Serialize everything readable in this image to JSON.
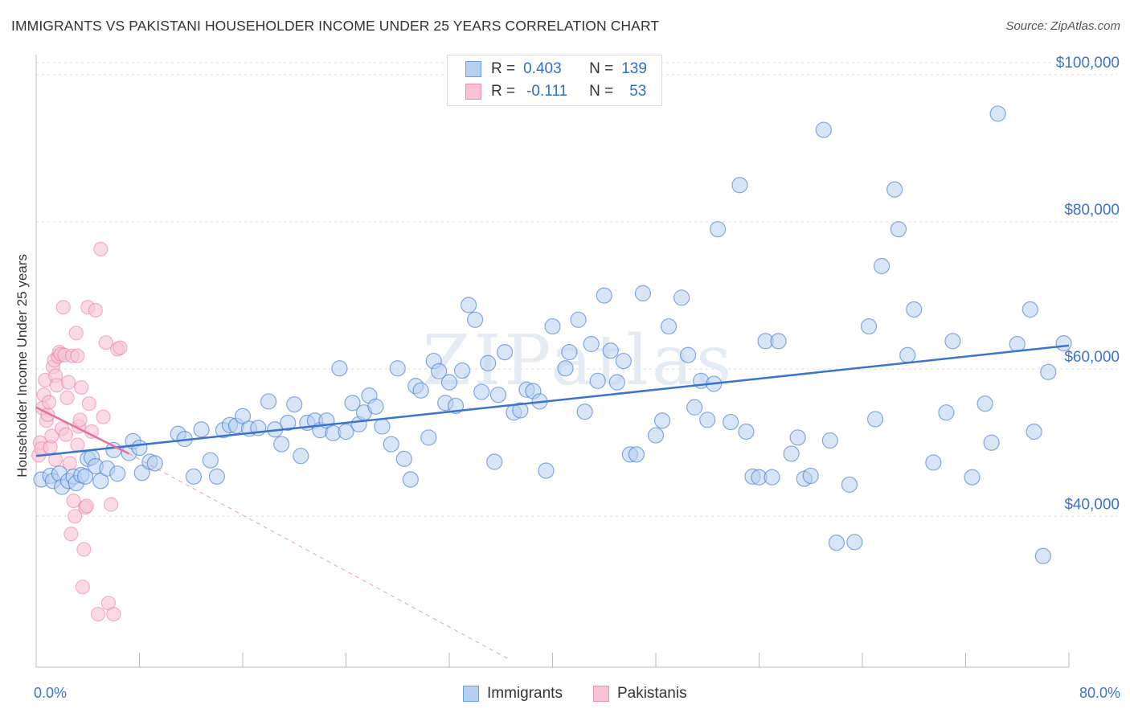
{
  "title": "IMMIGRANTS VS PAKISTANI HOUSEHOLDER INCOME UNDER 25 YEARS CORRELATION CHART",
  "source": "Source: ZipAtlas.com",
  "colors": {
    "blue": "#3a74cf",
    "blue_fill": "#b8d0f0",
    "pink": "#e8709a",
    "pink_fill": "#f7c3d3"
  },
  "legend": {
    "rows": [
      {
        "r_label": "R =",
        "r_value": "0.403",
        "n_label": "N =",
        "n_value": "139"
      },
      {
        "r_label": "R =",
        "r_value": "-0.111",
        "n_label": "N =",
        "n_value": "53"
      }
    ]
  },
  "bottom_legend": {
    "immigrants": "Immigrants",
    "pakistanis": "Pakistanis"
  },
  "chart_data": {
    "type": "scatter",
    "title": "IMMIGRANTS VS PAKISTANI HOUSEHOLDER INCOME UNDER 25 YEARS CORRELATION CHART",
    "xlabel": "",
    "ylabel": "Householder Income Under 25 years",
    "xlim": [
      0,
      80
    ],
    "ylim": [
      19500,
      102500
    ],
    "x_tick_labels": [
      "0.0%",
      "80.0%"
    ],
    "y_ticks": [
      {
        "value": 40000,
        "label": "$40,000"
      },
      {
        "value": 60000,
        "label": "$60,000"
      },
      {
        "value": 80000,
        "label": "$80,000"
      },
      {
        "value": 100000,
        "label": "$100,000"
      }
    ],
    "watermark": "ZIPatlas",
    "series": [
      {
        "name": "Immigrants",
        "r": 0.403,
        "n": 139,
        "trend": {
          "x0": 0,
          "y0": 48200,
          "x1": 80,
          "y1": 63200
        },
        "points": [
          [
            0.4,
            45000
          ],
          [
            1.1,
            45500
          ],
          [
            1.3,
            44800
          ],
          [
            1.8,
            45800
          ],
          [
            2.0,
            44000
          ],
          [
            2.5,
            44800
          ],
          [
            2.9,
            45400
          ],
          [
            3.1,
            44500
          ],
          [
            3.5,
            45600
          ],
          [
            3.8,
            45400
          ],
          [
            4.0,
            47800
          ],
          [
            4.3,
            48000
          ],
          [
            4.6,
            46800
          ],
          [
            5.0,
            44800
          ],
          [
            5.5,
            46500
          ],
          [
            6.0,
            49000
          ],
          [
            6.3,
            45800
          ],
          [
            7.2,
            48600
          ],
          [
            7.5,
            50200
          ],
          [
            8.0,
            49300
          ],
          [
            8.2,
            45900
          ],
          [
            8.8,
            47400
          ],
          [
            9.2,
            47200
          ],
          [
            11.0,
            51200
          ],
          [
            11.5,
            50500
          ],
          [
            12.2,
            45400
          ],
          [
            12.8,
            51800
          ],
          [
            13.5,
            47600
          ],
          [
            14.0,
            45400
          ],
          [
            14.5,
            51700
          ],
          [
            15.0,
            52400
          ],
          [
            15.5,
            52300
          ],
          [
            16.0,
            53600
          ],
          [
            16.5,
            51900
          ],
          [
            17.2,
            52000
          ],
          [
            18.0,
            55600
          ],
          [
            18.5,
            51800
          ],
          [
            19.0,
            49800
          ],
          [
            19.5,
            52700
          ],
          [
            20.0,
            55200
          ],
          [
            20.5,
            48200
          ],
          [
            21.0,
            52700
          ],
          [
            21.6,
            53000
          ],
          [
            22.0,
            51700
          ],
          [
            22.5,
            53000
          ],
          [
            23.0,
            51300
          ],
          [
            23.5,
            60100
          ],
          [
            24.0,
            51500
          ],
          [
            24.5,
            55400
          ],
          [
            25.0,
            52500
          ],
          [
            25.4,
            54100
          ],
          [
            25.8,
            56400
          ],
          [
            26.3,
            54900
          ],
          [
            26.8,
            52200
          ],
          [
            27.5,
            49800
          ],
          [
            28.0,
            60100
          ],
          [
            28.5,
            47800
          ],
          [
            29.0,
            45000
          ],
          [
            29.4,
            57700
          ],
          [
            29.8,
            57100
          ],
          [
            30.4,
            50700
          ],
          [
            30.8,
            61100
          ],
          [
            31.2,
            59700
          ],
          [
            31.7,
            55400
          ],
          [
            32.0,
            58200
          ],
          [
            32.5,
            55000
          ],
          [
            33.0,
            59800
          ],
          [
            33.5,
            68700
          ],
          [
            34.0,
            66700
          ],
          [
            34.5,
            56900
          ],
          [
            35.0,
            60800
          ],
          [
            35.5,
            47400
          ],
          [
            35.8,
            56500
          ],
          [
            36.3,
            62300
          ],
          [
            37.0,
            54100
          ],
          [
            37.5,
            54400
          ],
          [
            38.0,
            57200
          ],
          [
            38.5,
            57000
          ],
          [
            39.0,
            55600
          ],
          [
            39.5,
            46200
          ],
          [
            40.0,
            65800
          ],
          [
            41.0,
            60100
          ],
          [
            41.3,
            62300
          ],
          [
            42.0,
            66700
          ],
          [
            42.5,
            54200
          ],
          [
            43.0,
            63400
          ],
          [
            43.5,
            58400
          ],
          [
            44.0,
            70000
          ],
          [
            44.5,
            62500
          ],
          [
            45.0,
            58200
          ],
          [
            45.5,
            61100
          ],
          [
            46.0,
            48400
          ],
          [
            46.5,
            48400
          ],
          [
            47.0,
            70300
          ],
          [
            48.0,
            51000
          ],
          [
            48.5,
            53000
          ],
          [
            49.0,
            65800
          ],
          [
            50.0,
            69700
          ],
          [
            50.5,
            61900
          ],
          [
            51.0,
            54800
          ],
          [
            51.5,
            58400
          ],
          [
            52.0,
            53100
          ],
          [
            52.5,
            58000
          ],
          [
            52.8,
            79000
          ],
          [
            53.8,
            52800
          ],
          [
            54.5,
            85000
          ],
          [
            55.0,
            51500
          ],
          [
            55.5,
            45400
          ],
          [
            56.0,
            45300
          ],
          [
            56.5,
            63800
          ],
          [
            57.0,
            45300
          ],
          [
            57.5,
            63800
          ],
          [
            58.5,
            48500
          ],
          [
            59.0,
            50700
          ],
          [
            59.5,
            45100
          ],
          [
            60.0,
            45500
          ],
          [
            61.0,
            92500
          ],
          [
            61.5,
            50300
          ],
          [
            62.0,
            36400
          ],
          [
            63.0,
            44300
          ],
          [
            63.4,
            36500
          ],
          [
            64.5,
            65800
          ],
          [
            65.0,
            53200
          ],
          [
            65.5,
            74000
          ],
          [
            66.5,
            84400
          ],
          [
            66.8,
            79000
          ],
          [
            67.5,
            61900
          ],
          [
            68.0,
            68100
          ],
          [
            69.5,
            47300
          ],
          [
            70.5,
            54100
          ],
          [
            71.0,
            63800
          ],
          [
            72.5,
            45300
          ],
          [
            73.5,
            55300
          ],
          [
            74.0,
            50000
          ],
          [
            74.5,
            94700
          ],
          [
            76.0,
            63400
          ],
          [
            77.0,
            68100
          ],
          [
            77.3,
            51500
          ],
          [
            78.0,
            34600
          ],
          [
            78.4,
            59600
          ],
          [
            79.6,
            63500
          ]
        ]
      },
      {
        "name": "Pakistanis",
        "r": -0.111,
        "n": 53,
        "trend": {
          "x0": 0,
          "y0": 54800,
          "x1": 7.2,
          "y1": 48500
        },
        "trend_extension": {
          "x0": 7.2,
          "y0": 48500,
          "x1": 36.5,
          "y1": 20700
        },
        "points": [
          [
            0.2,
            48300
          ],
          [
            0.3,
            50000
          ],
          [
            0.4,
            49200
          ],
          [
            0.5,
            54700
          ],
          [
            0.6,
            56500
          ],
          [
            0.7,
            58500
          ],
          [
            0.8,
            53000
          ],
          [
            0.9,
            53800
          ],
          [
            1.0,
            55500
          ],
          [
            1.1,
            49400
          ],
          [
            1.2,
            50900
          ],
          [
            1.3,
            60300
          ],
          [
            1.4,
            61200
          ],
          [
            1.5,
            59100
          ],
          [
            1.6,
            57800
          ],
          [
            1.7,
            61700
          ],
          [
            1.8,
            62300
          ],
          [
            1.9,
            62000
          ],
          [
            2.0,
            51900
          ],
          [
            2.1,
            68400
          ],
          [
            2.2,
            61900
          ],
          [
            2.3,
            51100
          ],
          [
            2.4,
            56100
          ],
          [
            2.5,
            58200
          ],
          [
            2.6,
            47200
          ],
          [
            2.7,
            37600
          ],
          [
            2.8,
            61800
          ],
          [
            2.9,
            42100
          ],
          [
            3.0,
            40000
          ],
          [
            3.1,
            64900
          ],
          [
            3.2,
            61800
          ],
          [
            3.3,
            52200
          ],
          [
            3.4,
            53100
          ],
          [
            3.5,
            57500
          ],
          [
            3.6,
            30400
          ],
          [
            3.7,
            35500
          ],
          [
            3.8,
            41200
          ],
          [
            3.9,
            41400
          ],
          [
            4.0,
            68400
          ],
          [
            4.1,
            55300
          ],
          [
            4.3,
            51500
          ],
          [
            4.6,
            68000
          ],
          [
            4.8,
            26700
          ],
          [
            5.0,
            76300
          ],
          [
            5.2,
            53500
          ],
          [
            5.4,
            63600
          ],
          [
            5.6,
            28200
          ],
          [
            5.8,
            41600
          ],
          [
            6.0,
            26700
          ],
          [
            6.3,
            62700
          ],
          [
            6.5,
            62900
          ],
          [
            1.5,
            47700
          ],
          [
            3.2,
            49700
          ]
        ]
      }
    ]
  }
}
